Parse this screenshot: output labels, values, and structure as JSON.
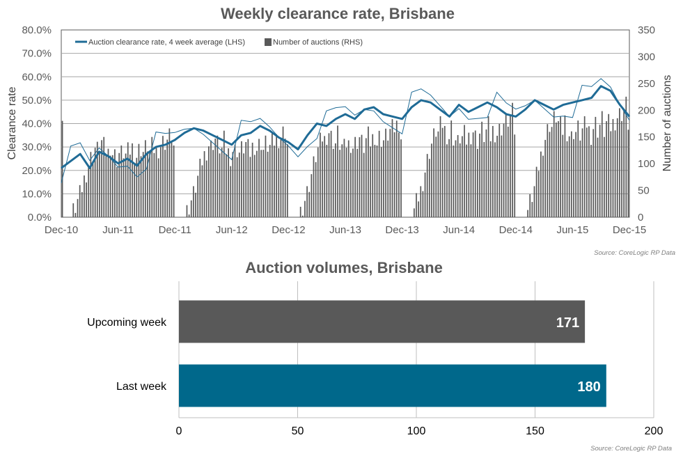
{
  "chart_data": [
    {
      "type": "bar+line",
      "title": "Weekly clearance rate, Brisbane",
      "ylabel_left": "Clearance rate",
      "ylabel_right": "Number of auctions",
      "ylim_left": [
        0,
        80
      ],
      "ylim_right": [
        0,
        350
      ],
      "y_ticks_left": [
        "0.0%",
        "10.0%",
        "20.0%",
        "30.0%",
        "40.0%",
        "50.0%",
        "60.0%",
        "70.0%",
        "80.0%"
      ],
      "y_ticks_right": [
        "0",
        "50",
        "100",
        "150",
        "200",
        "250",
        "300",
        "350"
      ],
      "x_ticks": [
        "Dec-10",
        "Jun-11",
        "Dec-11",
        "Jun-12",
        "Dec-12",
        "Jun-13",
        "Dec-13",
        "Jun-14",
        "Dec-14",
        "Jun-15",
        "Dec-15"
      ],
      "grid": true,
      "legend_position": "top-left",
      "legend": [
        "Auction clearance rate, 4 week average (LHS)",
        "Number of auctions (RHS)"
      ],
      "source": "Source: CoreLogic  RP Data",
      "colors": {
        "line": "#1f6b96",
        "bars": "#595959",
        "grid": "#a6a6a6"
      },
      "annual_cycle": {
        "weeks_per_year": 52,
        "cycle_start": "Dec",
        "weekly_auctions_by_week_of_cycle": [
          200,
          0,
          0,
          0,
          0,
          10,
          20,
          30,
          40,
          55,
          70,
          85,
          100,
          110,
          120,
          130,
          125,
          135,
          140,
          130,
          125,
          120,
          135,
          120,
          115,
          110,
          120,
          118,
          122,
          115,
          120,
          125,
          130,
          120,
          115,
          125,
          130,
          122,
          128,
          135,
          120,
          130,
          128,
          125,
          130,
          135,
          140,
          142,
          145,
          150,
          155,
          130
        ],
        "yearly_volume_multiplier": {
          "2011": 1.0,
          "2012": 1.05,
          "2013": 1.15,
          "2014": 1.25,
          "2015": 1.35
        }
      },
      "clearance_rate_4wk_avg_pct": {
        "points": [
          [
            "Dec-10",
            21
          ],
          [
            "Jan-11",
            24
          ],
          [
            "Feb-11",
            27
          ],
          [
            "Mar-11",
            21
          ],
          [
            "Apr-11",
            28
          ],
          [
            "May-11",
            26
          ],
          [
            "Jun-11",
            23
          ],
          [
            "Jul-11",
            25
          ],
          [
            "Aug-11",
            22
          ],
          [
            "Sep-11",
            27
          ],
          [
            "Oct-11",
            30
          ],
          [
            "Nov-11",
            31
          ],
          [
            "Dec-11",
            33
          ],
          [
            "Jan-12",
            36
          ],
          [
            "Feb-12",
            38
          ],
          [
            "Mar-12",
            37
          ],
          [
            "Apr-12",
            35
          ],
          [
            "May-12",
            33
          ],
          [
            "Jun-12",
            31
          ],
          [
            "Jul-12",
            35
          ],
          [
            "Aug-12",
            36
          ],
          [
            "Sep-12",
            39
          ],
          [
            "Oct-12",
            37
          ],
          [
            "Nov-12",
            34
          ],
          [
            "Dec-12",
            32
          ],
          [
            "Jan-13",
            29
          ],
          [
            "Feb-13",
            35
          ],
          [
            "Mar-13",
            40
          ],
          [
            "Apr-13",
            39
          ],
          [
            "May-13",
            42
          ],
          [
            "Jun-13",
            44
          ],
          [
            "Jul-13",
            42
          ],
          [
            "Aug-13",
            46
          ],
          [
            "Sep-13",
            47
          ],
          [
            "Oct-13",
            44
          ],
          [
            "Nov-13",
            43
          ],
          [
            "Dec-13",
            42
          ],
          [
            "Jan-14",
            47
          ],
          [
            "Feb-14",
            50
          ],
          [
            "Mar-14",
            49
          ],
          [
            "Apr-14",
            46
          ],
          [
            "May-14",
            43
          ],
          [
            "Jun-14",
            48
          ],
          [
            "Jul-14",
            45
          ],
          [
            "Aug-14",
            47
          ],
          [
            "Sep-14",
            49
          ],
          [
            "Oct-14",
            47
          ],
          [
            "Nov-14",
            44
          ],
          [
            "Dec-14",
            43
          ],
          [
            "Jan-15",
            46
          ],
          [
            "Feb-15",
            50
          ],
          [
            "Mar-15",
            48
          ],
          [
            "Apr-15",
            46
          ],
          [
            "May-15",
            48
          ],
          [
            "Jun-15",
            49
          ],
          [
            "Jul-15",
            50
          ],
          [
            "Aug-15",
            51
          ],
          [
            "Sep-15",
            56
          ],
          [
            "Oct-15",
            54
          ],
          [
            "Nov-15",
            48
          ],
          [
            "Dec-15",
            43
          ]
        ]
      }
    },
    {
      "type": "bar",
      "orientation": "horizontal",
      "title": "Auction volumes, Brisbane",
      "categories": [
        "Upcoming week",
        "Last week"
      ],
      "values": [
        171,
        180
      ],
      "labels": [
        "171",
        "180"
      ],
      "xlim": [
        0,
        200
      ],
      "x_ticks": [
        "0",
        "50",
        "100",
        "150",
        "200"
      ],
      "grid": true,
      "source": "Source: CoreLogic  RP Data",
      "colors": {
        "Upcoming week": "#595959",
        "Last week": "#00688b",
        "grid": "#bfbfbf"
      }
    }
  ]
}
